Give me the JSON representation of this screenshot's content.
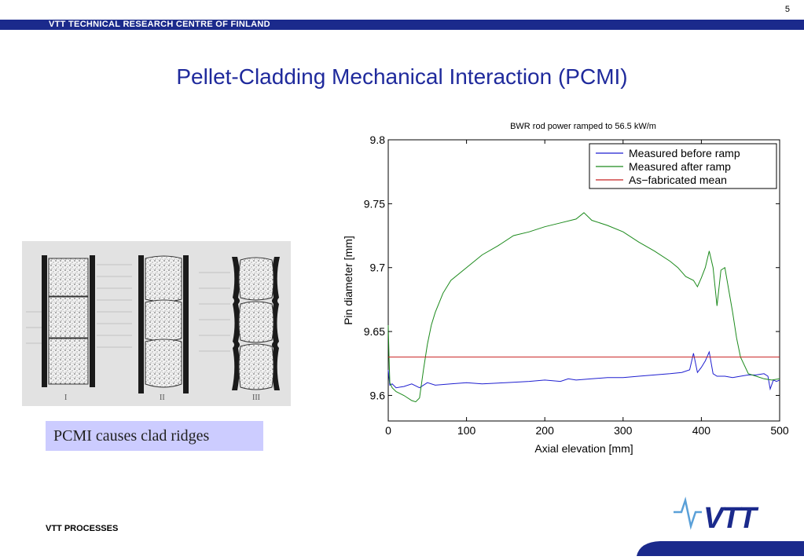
{
  "page_number": "5",
  "header": {
    "org": "VTT TECHNICAL RESEARCH CENTRE OF FINLAND"
  },
  "title": "Pellet-Cladding Mechanical Interaction (PCMI)",
  "figure": {
    "caption": "PCMI causes clad ridges",
    "stage_labels": [
      "I",
      "II",
      "III"
    ]
  },
  "footer": {
    "label": "VTT PROCESSES"
  },
  "logo": {
    "text": "VTT",
    "color": "#1b2a8c"
  },
  "colors": {
    "header_bar": "#1b2a8c",
    "title": "#1f2a9c",
    "caption_bg": "#ccccff"
  },
  "chart_data": {
    "type": "line",
    "title": "BWR rod power ramped to 56.5 kW/m",
    "xlabel": "Axial elevation [mm]",
    "ylabel": "Pin diameter [mm]",
    "xlim": [
      0,
      500
    ],
    "ylim": [
      9.58,
      9.8
    ],
    "xticks": [
      "0",
      "100",
      "200",
      "300",
      "400",
      "500"
    ],
    "yticks": [
      "9.6",
      "9.65",
      "9.7",
      "9.75",
      "9.8"
    ],
    "legend_position": "top-right",
    "grid": false,
    "series": [
      {
        "name": "Measured before ramp",
        "color": "#1f1fd0",
        "x": [
          0,
          2,
          5,
          10,
          20,
          30,
          40,
          50,
          60,
          80,
          100,
          120,
          150,
          180,
          200,
          220,
          230,
          240,
          260,
          280,
          300,
          320,
          340,
          360,
          375,
          385,
          390,
          395,
          400,
          405,
          410,
          415,
          420,
          430,
          440,
          450,
          460,
          470,
          480,
          485,
          488,
          492,
          496,
          500
        ],
        "y": [
          9.62,
          9.608,
          9.609,
          9.606,
          9.607,
          9.609,
          9.606,
          9.61,
          9.608,
          9.609,
          9.61,
          9.609,
          9.61,
          9.611,
          9.612,
          9.611,
          9.613,
          9.612,
          9.613,
          9.614,
          9.614,
          9.615,
          9.616,
          9.617,
          9.618,
          9.62,
          9.633,
          9.618,
          9.622,
          9.627,
          9.634,
          9.617,
          9.615,
          9.615,
          9.614,
          9.615,
          9.616,
          9.616,
          9.617,
          9.615,
          9.605,
          9.612,
          9.611,
          9.612
        ]
      },
      {
        "name": "Measured after ramp",
        "color": "#1c8a1c",
        "x": [
          0,
          1,
          2,
          5,
          10,
          20,
          30,
          35,
          40,
          45,
          50,
          55,
          60,
          70,
          80,
          100,
          120,
          140,
          160,
          180,
          200,
          220,
          240,
          250,
          260,
          280,
          300,
          320,
          340,
          360,
          370,
          380,
          390,
          395,
          400,
          405,
          410,
          415,
          420,
          425,
          430,
          440,
          445,
          450,
          460,
          470,
          480,
          490,
          500
        ],
        "y": [
          9.655,
          9.63,
          9.61,
          9.606,
          9.603,
          9.6,
          9.596,
          9.595,
          9.598,
          9.62,
          9.64,
          9.655,
          9.665,
          9.68,
          9.69,
          9.7,
          9.71,
          9.717,
          9.725,
          9.728,
          9.732,
          9.735,
          9.738,
          9.743,
          9.737,
          9.733,
          9.728,
          9.72,
          9.713,
          9.705,
          9.7,
          9.693,
          9.69,
          9.685,
          9.692,
          9.7,
          9.713,
          9.7,
          9.67,
          9.698,
          9.7,
          9.665,
          9.645,
          9.63,
          9.617,
          9.615,
          9.613,
          9.612,
          9.613
        ]
      },
      {
        "name": "As−fabricated mean",
        "color": "#c82020",
        "x": [
          0,
          500
        ],
        "y": [
          9.63,
          9.63
        ]
      }
    ]
  }
}
